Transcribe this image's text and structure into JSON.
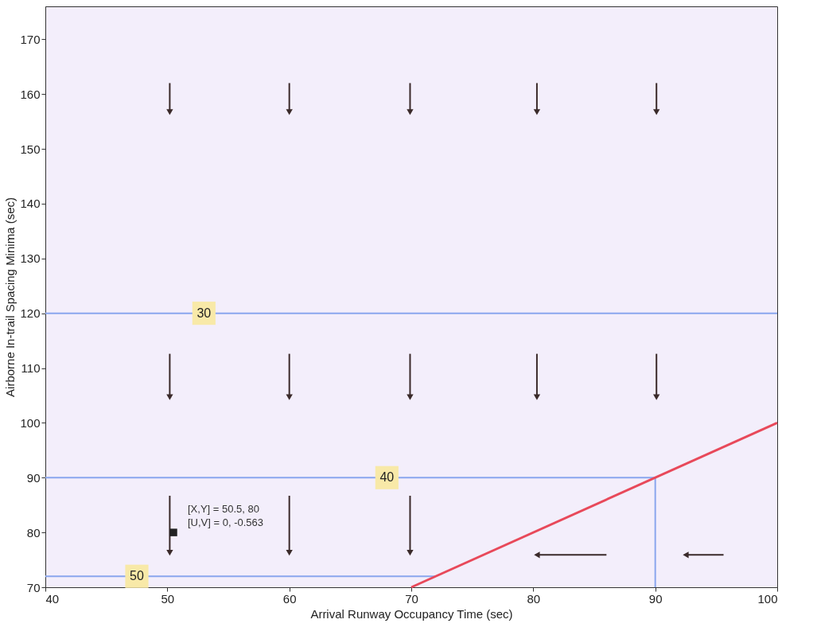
{
  "chart_data": {
    "type": "line",
    "xlabel": "Arrival Runway Occupancy Time (sec)",
    "ylabel": "Airborne In-trail Spacing Minima (sec)",
    "xlim": [
      40,
      100
    ],
    "xticks": [
      40,
      50,
      60,
      70,
      80,
      90,
      100
    ],
    "ylim": [
      70,
      176
    ],
    "yticks": [
      70,
      80,
      90,
      100,
      110,
      120,
      130,
      140,
      150,
      160,
      170
    ],
    "grid": false,
    "series": [
      {
        "color": "#8aa6ee",
        "x": [
          40,
          100
        ],
        "values": [
          120,
          120
        ]
      },
      {
        "color": "#8aa6ee",
        "x": [
          40,
          90,
          90
        ],
        "values": [
          90,
          90,
          70
        ]
      },
      {
        "color": "#8aa6ee",
        "x": [
          40,
          72
        ],
        "values": [
          72,
          72
        ]
      },
      {
        "color": "#e8495a",
        "x": [
          70,
          100
        ],
        "values": [
          70,
          100
        ]
      },
      {
        "color": "#3a2a2a",
        "marker": "triangle",
        "x": [
          50.2,
          50.2
        ],
        "values": [
          162,
          156.7
        ]
      },
      {
        "color": "#3a2a2a",
        "marker": "triangle",
        "x": [
          60,
          60
        ],
        "values": [
          162,
          156.7
        ]
      },
      {
        "color": "#3a2a2a",
        "marker": "triangle",
        "x": [
          69.9,
          69.9
        ],
        "values": [
          162,
          156.7
        ]
      },
      {
        "color": "#3a2a2a",
        "marker": "triangle",
        "x": [
          80.3,
          80.3
        ],
        "values": [
          162,
          156.7
        ]
      },
      {
        "color": "#3a2a2a",
        "marker": "triangle",
        "x": [
          90.1,
          90.1
        ],
        "values": [
          162,
          156.7
        ]
      },
      {
        "color": "#3a2a2a",
        "marker": "triangle",
        "x": [
          50.2,
          50.2
        ],
        "values": [
          112.6,
          104.7
        ]
      },
      {
        "color": "#3a2a2a",
        "marker": "triangle",
        "x": [
          60,
          60
        ],
        "values": [
          112.6,
          104.7
        ]
      },
      {
        "color": "#3a2a2a",
        "marker": "triangle",
        "x": [
          69.9,
          69.9
        ],
        "values": [
          112.6,
          104.7
        ]
      },
      {
        "color": "#3a2a2a",
        "marker": "triangle",
        "x": [
          80.3,
          80.3
        ],
        "values": [
          112.6,
          104.7
        ]
      },
      {
        "color": "#3a2a2a",
        "marker": "triangle",
        "x": [
          90.1,
          90.1
        ],
        "values": [
          112.6,
          104.7
        ]
      },
      {
        "color": "#3a2a2a",
        "marker": "triangle",
        "x": [
          50.2,
          50.2
        ],
        "values": [
          86.7,
          76.3
        ]
      },
      {
        "color": "#3a2a2a",
        "marker": "triangle",
        "x": [
          60,
          60
        ],
        "values": [
          86.7,
          76.3
        ]
      },
      {
        "color": "#3a2a2a",
        "marker": "triangle",
        "x": [
          69.9,
          69.9
        ],
        "values": [
          86.7,
          76.3
        ]
      },
      {
        "color": "#3a2a2a",
        "marker": "triangle",
        "x": [
          86,
          80.3
        ],
        "values": [
          75.9,
          75.9
        ]
      },
      {
        "color": "#3a2a2a",
        "marker": "triangle",
        "x": [
          95.6,
          92.5
        ],
        "values": [
          75.9,
          75.9
        ]
      }
    ],
    "annotations": [
      {
        "text": "30",
        "x": 53,
        "y": 120
      },
      {
        "text": "40",
        "x": 68,
        "y": 90
      },
      {
        "text": "50",
        "x": 47.5,
        "y": 72
      },
      {
        "text": "[X,Y] = 50.5,  80\n[U,V] = 0,  -0.563",
        "x": 50.5,
        "y": 80
      }
    ]
  }
}
